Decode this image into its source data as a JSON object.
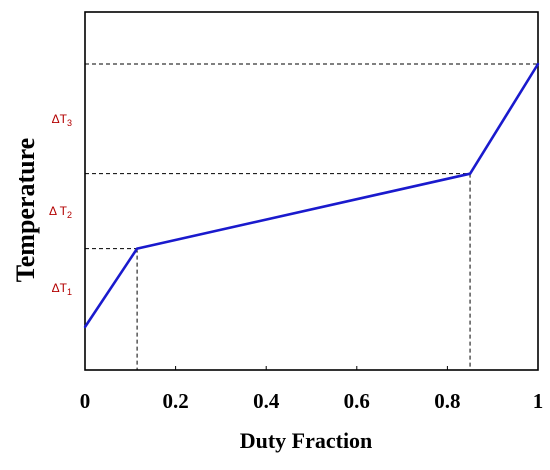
{
  "chart_data": {
    "type": "line",
    "title": "",
    "xlabel": "Duty Fraction",
    "ylabel": "Temperature",
    "xlim": [
      0,
      1
    ],
    "x_ticks": [
      "0",
      "0.2",
      "0.4",
      "0.6",
      "0.8",
      "1"
    ],
    "x_tick_values": [
      0,
      0.2,
      0.4,
      0.6,
      0.8,
      1
    ],
    "y_ticks_shown": false,
    "grid": false,
    "legend": "none",
    "line_color": "#1a1acd",
    "annotation_color": "#b30000",
    "series": [
      {
        "x": [
          0,
          0.115,
          0.85,
          1
        ],
        "y": [
          0,
          0.298,
          0.583,
          1
        ]
      }
    ],
    "breakpoints": [
      {
        "x": 0.115,
        "y": 0.298
      },
      {
        "x": 0.85,
        "y": 0.583
      },
      {
        "x": 1,
        "y": 1
      }
    ],
    "annotations": [
      {
        "base": "ΔT",
        "sub": "1"
      },
      {
        "base": "Δ T",
        "sub": "2"
      },
      {
        "base": "ΔT",
        "sub": "3"
      }
    ]
  }
}
